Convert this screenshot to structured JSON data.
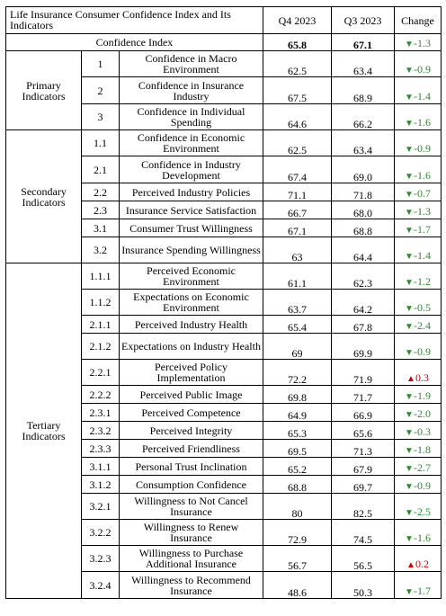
{
  "table": {
    "title": "Life Insurance Consumer Confidence Index and Its Indicators",
    "headers": {
      "q4": "Q4 2023",
      "q3": "Q3 2023",
      "change": "Change"
    },
    "index_row": {
      "name": "Confidence Index",
      "q4": "65.8",
      "q3": "67.1",
      "change": "-1.3",
      "dir": "down"
    },
    "groups": [
      {
        "label": "Primary Indicators",
        "rows": [
          {
            "code": "1",
            "name": "Confidence in Macro Environment",
            "q4": "62.5",
            "q3": "63.4",
            "change": "-0.9",
            "dir": "down"
          },
          {
            "code": "2",
            "name": "Confidence in Insurance Industry",
            "q4": "67.5",
            "q3": "68.9",
            "change": "-1.4",
            "dir": "down"
          },
          {
            "code": "3",
            "name": "Confidence in Individual Spending",
            "q4": "64.6",
            "q3": "66.2",
            "change": "-1.6",
            "dir": "down"
          }
        ]
      },
      {
        "label": "Secondary Indicators",
        "rows": [
          {
            "code": "1.1",
            "name": "Confidence in Economic Environment",
            "q4": "62.5",
            "q3": "63.4",
            "change": "-0.9",
            "dir": "down"
          },
          {
            "code": "2.1",
            "name": "Confidence in Industry Development",
            "q4": "67.4",
            "q3": "69.0",
            "change": "-1.6",
            "dir": "down"
          },
          {
            "code": "2.2",
            "name": "Perceived Industry Policies",
            "q4": "71.1",
            "q3": "71.8",
            "change": "-0.7",
            "dir": "down"
          },
          {
            "code": "2.3",
            "name": "Insurance Service Satisfaction",
            "q4": "66.7",
            "q3": "68.0",
            "change": "-1.3",
            "dir": "down"
          },
          {
            "code": "3.1",
            "name": "Consumer Trust Willingness",
            "q4": "67.1",
            "q3": "68.8",
            "change": "-1.7",
            "dir": "down"
          },
          {
            "code": "3.2",
            "name": "Insurance Spending Willingness",
            "q4": "63",
            "q3": "64.4",
            "change": "-1.4",
            "dir": "down"
          }
        ]
      },
      {
        "label": "Tertiary Indicators",
        "rows": [
          {
            "code": "1.1.1",
            "name": "Perceived Economic Environment",
            "q4": "61.1",
            "q3": "62.3",
            "change": "-1.2",
            "dir": "down"
          },
          {
            "code": "1.1.2",
            "name": "Expectations on Economic Environment",
            "q4": "63.7",
            "q3": "64.2",
            "change": "-0.5",
            "dir": "down"
          },
          {
            "code": "2.1.1",
            "name": "Perceived Industry Health",
            "q4": "65.4",
            "q3": "67.8",
            "change": "-2.4",
            "dir": "down"
          },
          {
            "code": "2.1.2",
            "name": "Expectations on Industry Health",
            "q4": "69",
            "q3": "69.9",
            "change": "-0.9",
            "dir": "down"
          },
          {
            "code": "2.2.1",
            "name": "Perceived Policy Implementation",
            "q4": "72.2",
            "q3": "71.9",
            "change": "0.3",
            "dir": "up"
          },
          {
            "code": "2.2.2",
            "name": "Perceived Public Image",
            "q4": "69.8",
            "q3": "71.7",
            "change": "-1.9",
            "dir": "down"
          },
          {
            "code": "2.3.1",
            "name": "Perceived Competence",
            "q4": "64.9",
            "q3": "66.9",
            "change": "-2.0",
            "dir": "down"
          },
          {
            "code": "2.3.2",
            "name": "Perceived Integrity",
            "q4": "65.3",
            "q3": "65.6",
            "change": "-0.3",
            "dir": "down"
          },
          {
            "code": "2.3.3",
            "name": "Perceived Friendliness",
            "q4": "69.5",
            "q3": "71.3",
            "change": "-1.8",
            "dir": "down"
          },
          {
            "code": "3.1.1",
            "name": "Personal Trust Inclination",
            "q4": "65.2",
            "q3": "67.9",
            "change": "-2.7",
            "dir": "down"
          },
          {
            "code": "3.1.2",
            "name": "Consumption Confidence",
            "q4": "68.8",
            "q3": "69.7",
            "change": "-0.9",
            "dir": "down"
          },
          {
            "code": "3.2.1",
            "name": "Willingness to Not Cancel Insurance",
            "q4": "80",
            "q3": "82.5",
            "change": "-2.5",
            "dir": "down"
          },
          {
            "code": "3.2.2",
            "name": "Willingness to Renew Insurance",
            "q4": "72.9",
            "q3": "74.5",
            "change": "-1.6",
            "dir": "down"
          },
          {
            "code": "3.2.3",
            "name": "Willingness to Purchase Additional Insurance",
            "q4": "56.7",
            "q3": "56.5",
            "change": "0.2",
            "dir": "up"
          },
          {
            "code": "3.2.4",
            "name": "Willingness to Recommend Insurance",
            "q4": "48.6",
            "q3": "50.3",
            "change": "-1.7",
            "dir": "down"
          }
        ]
      }
    ],
    "icons": {
      "down": "▼",
      "up": "▲"
    },
    "colors": {
      "down": "#2e8b2e",
      "up": "#cc0000"
    }
  }
}
